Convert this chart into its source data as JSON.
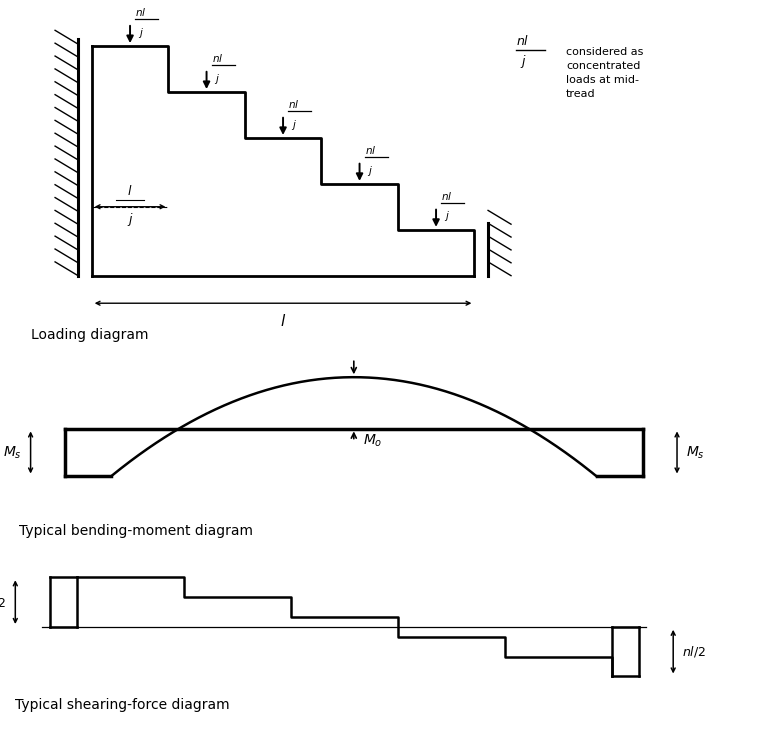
{
  "bg_color": "#ffffff",
  "line_color": "#000000",
  "fig_width": 7.65,
  "fig_height": 7.37,
  "diagram1_title": "Loading diagram",
  "diagram2_title": "Typical bending-moment diagram",
  "diagram3_title": "Typical shearing-force diagram",
  "annotation_text": "considered as\nconcentrated\nloads at mid-\ntread"
}
